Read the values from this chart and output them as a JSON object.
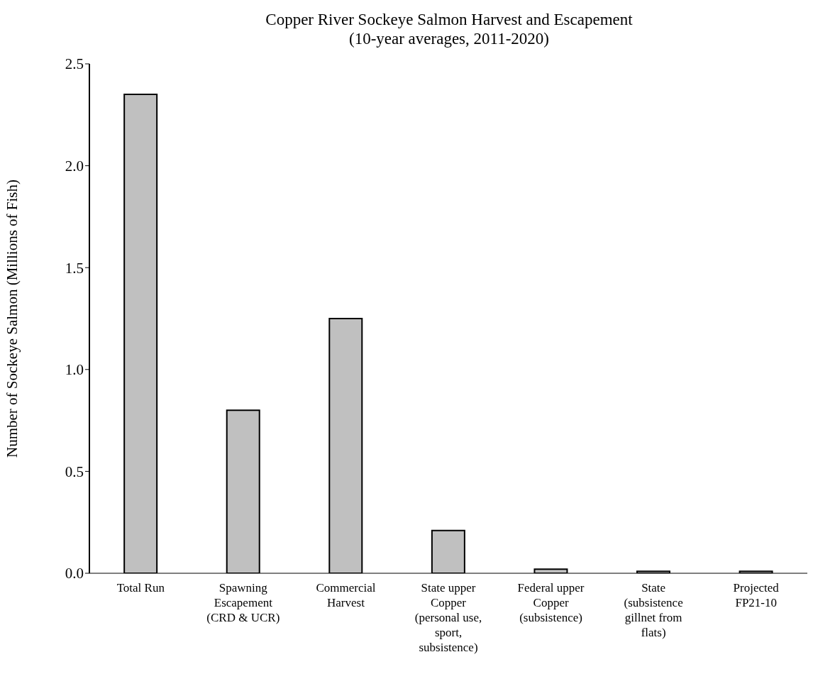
{
  "chart_data": {
    "type": "bar",
    "title": "Copper River Sockeye Salmon Harvest and Escapement",
    "subtitle": "(10-year averages, 2011-2020)",
    "ylabel": "Number of Sockeye Salmon (Millions of Fish)",
    "categories": [
      "Total Run",
      "Spawning Escapement (CRD & UCR)",
      "Commercial Harvest",
      "State upper Copper (personal use, sport, subsistence)",
      "Federal upper Copper (subsistence)",
      "State (subsistence gillnet from flats)",
      "Projected FP21-10"
    ],
    "values": [
      2.35,
      0.8,
      1.25,
      0.21,
      0.02,
      0.01,
      0.01
    ],
    "color": "#c0c0c0",
    "ylim": [
      0,
      2.5
    ],
    "yticks": [
      {
        "value": 0,
        "label": "0.0"
      },
      {
        "value": 0.5,
        "label": "0.5"
      },
      {
        "value": 1,
        "label": "1.0"
      },
      {
        "value": 1.5,
        "label": "1.5"
      },
      {
        "value": 2,
        "label": "2.0"
      },
      {
        "value": 2.5,
        "label": "2.5"
      }
    ],
    "grid": false,
    "legend": false
  }
}
